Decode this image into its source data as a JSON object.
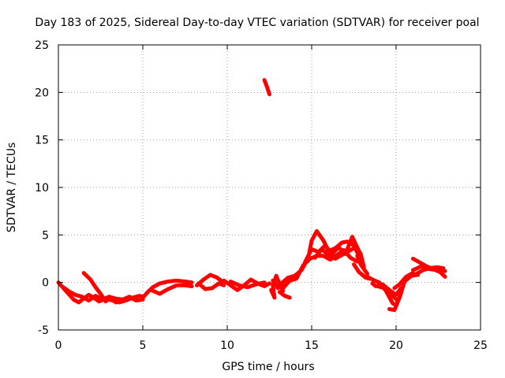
{
  "chart_data": {
    "type": "scatter",
    "title": "Day 183 of 2025, Sidereal Day-to-day VTEC variation (SDTVAR) for receiver poal",
    "xlabel": "GPS time / hours",
    "ylabel": "SDTVAR / TECUs",
    "xlim": [
      0,
      25
    ],
    "ylim": [
      -5,
      25
    ],
    "xticks": [
      0,
      5,
      10,
      15,
      20,
      25
    ],
    "yticks": [
      -5,
      0,
      5,
      10,
      15,
      20,
      25
    ],
    "grid": true,
    "series": [
      {
        "name": "SDTVAR",
        "color": "#ff0000",
        "segments": [
          [
            [
              0.0,
              0.0
            ],
            [
              0.3,
              -0.6
            ],
            [
              0.6,
              -1.2
            ],
            [
              0.9,
              -1.8
            ],
            [
              1.2,
              -2.1
            ],
            [
              1.5,
              -1.7
            ],
            [
              1.8,
              -1.3
            ],
            [
              2.1,
              -1.6
            ],
            [
              2.4,
              -2.0
            ],
            [
              2.8,
              -1.7
            ],
            [
              3.2,
              -1.9
            ],
            [
              3.6,
              -2.1
            ],
            [
              4.0,
              -1.9
            ],
            [
              4.4,
              -1.6
            ],
            [
              4.8,
              -1.4
            ],
            [
              5.0,
              -1.5
            ]
          ],
          [
            [
              0.2,
              -0.4
            ],
            [
              0.6,
              -0.9
            ],
            [
              1.0,
              -1.3
            ],
            [
              1.4,
              -1.5
            ],
            [
              1.8,
              -1.9
            ],
            [
              2.2,
              -1.4
            ],
            [
              2.6,
              -1.8
            ],
            [
              3.0,
              -1.5
            ],
            [
              3.4,
              -1.7
            ],
            [
              3.8,
              -1.8
            ],
            [
              4.2,
              -1.5
            ],
            [
              4.6,
              -1.9
            ],
            [
              5.0,
              -1.8
            ]
          ],
          [
            [
              1.5,
              1.0
            ],
            [
              1.9,
              0.3
            ],
            [
              2.2,
              -0.5
            ],
            [
              2.5,
              -1.2
            ],
            [
              2.8,
              -2.0
            ],
            [
              3.1,
              -1.6
            ],
            [
              3.4,
              -2.1
            ]
          ],
          [
            [
              5.0,
              -1.6
            ],
            [
              5.3,
              -1.0
            ],
            [
              5.6,
              -0.5
            ],
            [
              6.0,
              -0.1
            ],
            [
              6.5,
              0.1
            ],
            [
              7.0,
              0.2
            ],
            [
              7.5,
              0.1
            ],
            [
              7.9,
              0.0
            ]
          ],
          [
            [
              5.5,
              -0.8
            ],
            [
              6.0,
              -1.2
            ],
            [
              6.5,
              -0.7
            ],
            [
              7.0,
              -0.3
            ],
            [
              7.5,
              -0.3
            ],
            [
              7.9,
              -0.4
            ]
          ],
          [
            [
              8.2,
              -0.3
            ],
            [
              8.6,
              0.3
            ],
            [
              9.0,
              0.8
            ],
            [
              9.4,
              0.5
            ],
            [
              9.7,
              0.1
            ]
          ],
          [
            [
              8.3,
              -0.1
            ],
            [
              8.7,
              -0.7
            ],
            [
              9.1,
              -0.6
            ],
            [
              9.5,
              -0.1
            ],
            [
              9.8,
              -0.3
            ]
          ],
          [
            [
              9.8,
              0.2
            ],
            [
              10.2,
              -0.3
            ],
            [
              10.6,
              -0.8
            ],
            [
              11.0,
              -0.3
            ],
            [
              11.4,
              0.3
            ],
            [
              11.8,
              -0.1
            ],
            [
              12.2,
              -0.4
            ],
            [
              12.5,
              -0.1
            ]
          ],
          [
            [
              10.2,
              0.1
            ],
            [
              10.7,
              -0.3
            ],
            [
              11.2,
              -0.5
            ],
            [
              11.7,
              -0.2
            ],
            [
              12.2,
              0.0
            ]
          ],
          [
            [
              12.2,
              21.3
            ],
            [
              12.35,
              20.6
            ],
            [
              12.5,
              19.8
            ]
          ],
          [
            [
              12.6,
              -0.8
            ],
            [
              12.8,
              -1.6
            ],
            [
              12.7,
              -0.3
            ],
            [
              12.9,
              0.7
            ],
            [
              13.1,
              -0.2
            ],
            [
              13.3,
              -0.9
            ]
          ],
          [
            [
              12.7,
              0.2
            ],
            [
              13.0,
              -0.6
            ],
            [
              13.3,
              -0.2
            ]
          ],
          [
            [
              13.1,
              -1.0
            ],
            [
              13.4,
              -1.4
            ],
            [
              13.7,
              -1.6
            ]
          ],
          [
            [
              13.2,
              -0.1
            ],
            [
              13.6,
              0.5
            ],
            [
              14.0,
              0.7
            ],
            [
              14.4,
              1.3
            ],
            [
              14.8,
              2.6
            ],
            [
              15.0,
              4.4
            ],
            [
              15.3,
              5.4
            ],
            [
              15.7,
              4.4
            ],
            [
              16.0,
              3.3
            ],
            [
              16.4,
              3.6
            ],
            [
              16.8,
              4.2
            ],
            [
              17.1,
              4.3
            ],
            [
              17.5,
              3.9
            ],
            [
              17.9,
              2.4
            ]
          ],
          [
            [
              13.3,
              -0.6
            ],
            [
              13.7,
              0.2
            ],
            [
              14.1,
              0.4
            ],
            [
              14.5,
              1.8
            ],
            [
              14.9,
              2.5
            ],
            [
              15.3,
              2.8
            ],
            [
              15.7,
              2.8
            ],
            [
              16.1,
              2.4
            ],
            [
              16.5,
              2.9
            ],
            [
              16.9,
              3.4
            ],
            [
              17.3,
              2.6
            ],
            [
              17.7,
              2.2
            ]
          ],
          [
            [
              14.6,
              2.1
            ],
            [
              15.0,
              3.5
            ],
            [
              15.4,
              3.2
            ],
            [
              15.8,
              3.9
            ],
            [
              16.2,
              3.0
            ],
            [
              16.6,
              3.7
            ],
            [
              17.0,
              3.0
            ],
            [
              17.4,
              4.8
            ],
            [
              17.8,
              3.3
            ]
          ],
          [
            [
              15.2,
              2.6
            ],
            [
              15.6,
              3.5
            ],
            [
              16.0,
              2.9
            ],
            [
              16.4,
              2.5
            ],
            [
              16.8,
              2.9
            ],
            [
              17.2,
              3.3
            ],
            [
              17.6,
              3.7
            ]
          ],
          [
            [
              17.7,
              2.8
            ],
            [
              17.9,
              1.9
            ],
            [
              18.1,
              1.4
            ],
            [
              18.3,
              0.9
            ]
          ],
          [
            [
              17.5,
              1.9
            ],
            [
              17.8,
              1.1
            ],
            [
              18.2,
              0.5
            ],
            [
              18.4,
              0.4
            ]
          ],
          [
            [
              17.7,
              3.6
            ],
            [
              17.9,
              3.0
            ],
            [
              18.1,
              1.6
            ]
          ],
          [
            [
              18.3,
              0.6
            ],
            [
              18.6,
              0.3
            ],
            [
              19.0,
              0.0
            ],
            [
              19.4,
              -0.9
            ],
            [
              19.8,
              -2.2
            ],
            [
              20.0,
              -2.4
            ],
            [
              20.3,
              -1.1
            ]
          ],
          [
            [
              18.6,
              -0.1
            ],
            [
              18.8,
              -0.4
            ],
            [
              19.2,
              -0.2
            ],
            [
              19.6,
              -0.8
            ],
            [
              20.0,
              -1.3
            ],
            [
              20.3,
              -0.6
            ]
          ],
          [
            [
              18.9,
              -0.4
            ],
            [
              19.3,
              -0.6
            ],
            [
              19.7,
              -1.3
            ],
            [
              20.1,
              -1.9
            ]
          ],
          [
            [
              19.6,
              -2.8
            ],
            [
              19.9,
              -2.9
            ],
            [
              20.2,
              -1.6
            ],
            [
              20.5,
              0.1
            ],
            [
              20.9,
              0.7
            ],
            [
              21.3,
              0.8
            ]
          ],
          [
            [
              19.9,
              -0.6
            ],
            [
              20.2,
              -0.2
            ],
            [
              20.6,
              0.6
            ],
            [
              21.0,
              1.0
            ]
          ],
          [
            [
              21.0,
              1.3
            ],
            [
              21.5,
              1.7
            ],
            [
              22.0,
              1.4
            ],
            [
              22.5,
              1.3
            ],
            [
              22.9,
              1.2
            ]
          ],
          [
            [
              21.0,
              2.5
            ],
            [
              21.4,
              2.1
            ],
            [
              21.8,
              1.7
            ],
            [
              22.2,
              1.4
            ],
            [
              22.6,
              1.1
            ],
            [
              22.9,
              0.6
            ]
          ],
          [
            [
              21.2,
              0.9
            ],
            [
              21.6,
              1.3
            ],
            [
              22.0,
              1.5
            ],
            [
              22.4,
              1.6
            ],
            [
              22.8,
              1.5
            ]
          ]
        ]
      }
    ]
  }
}
